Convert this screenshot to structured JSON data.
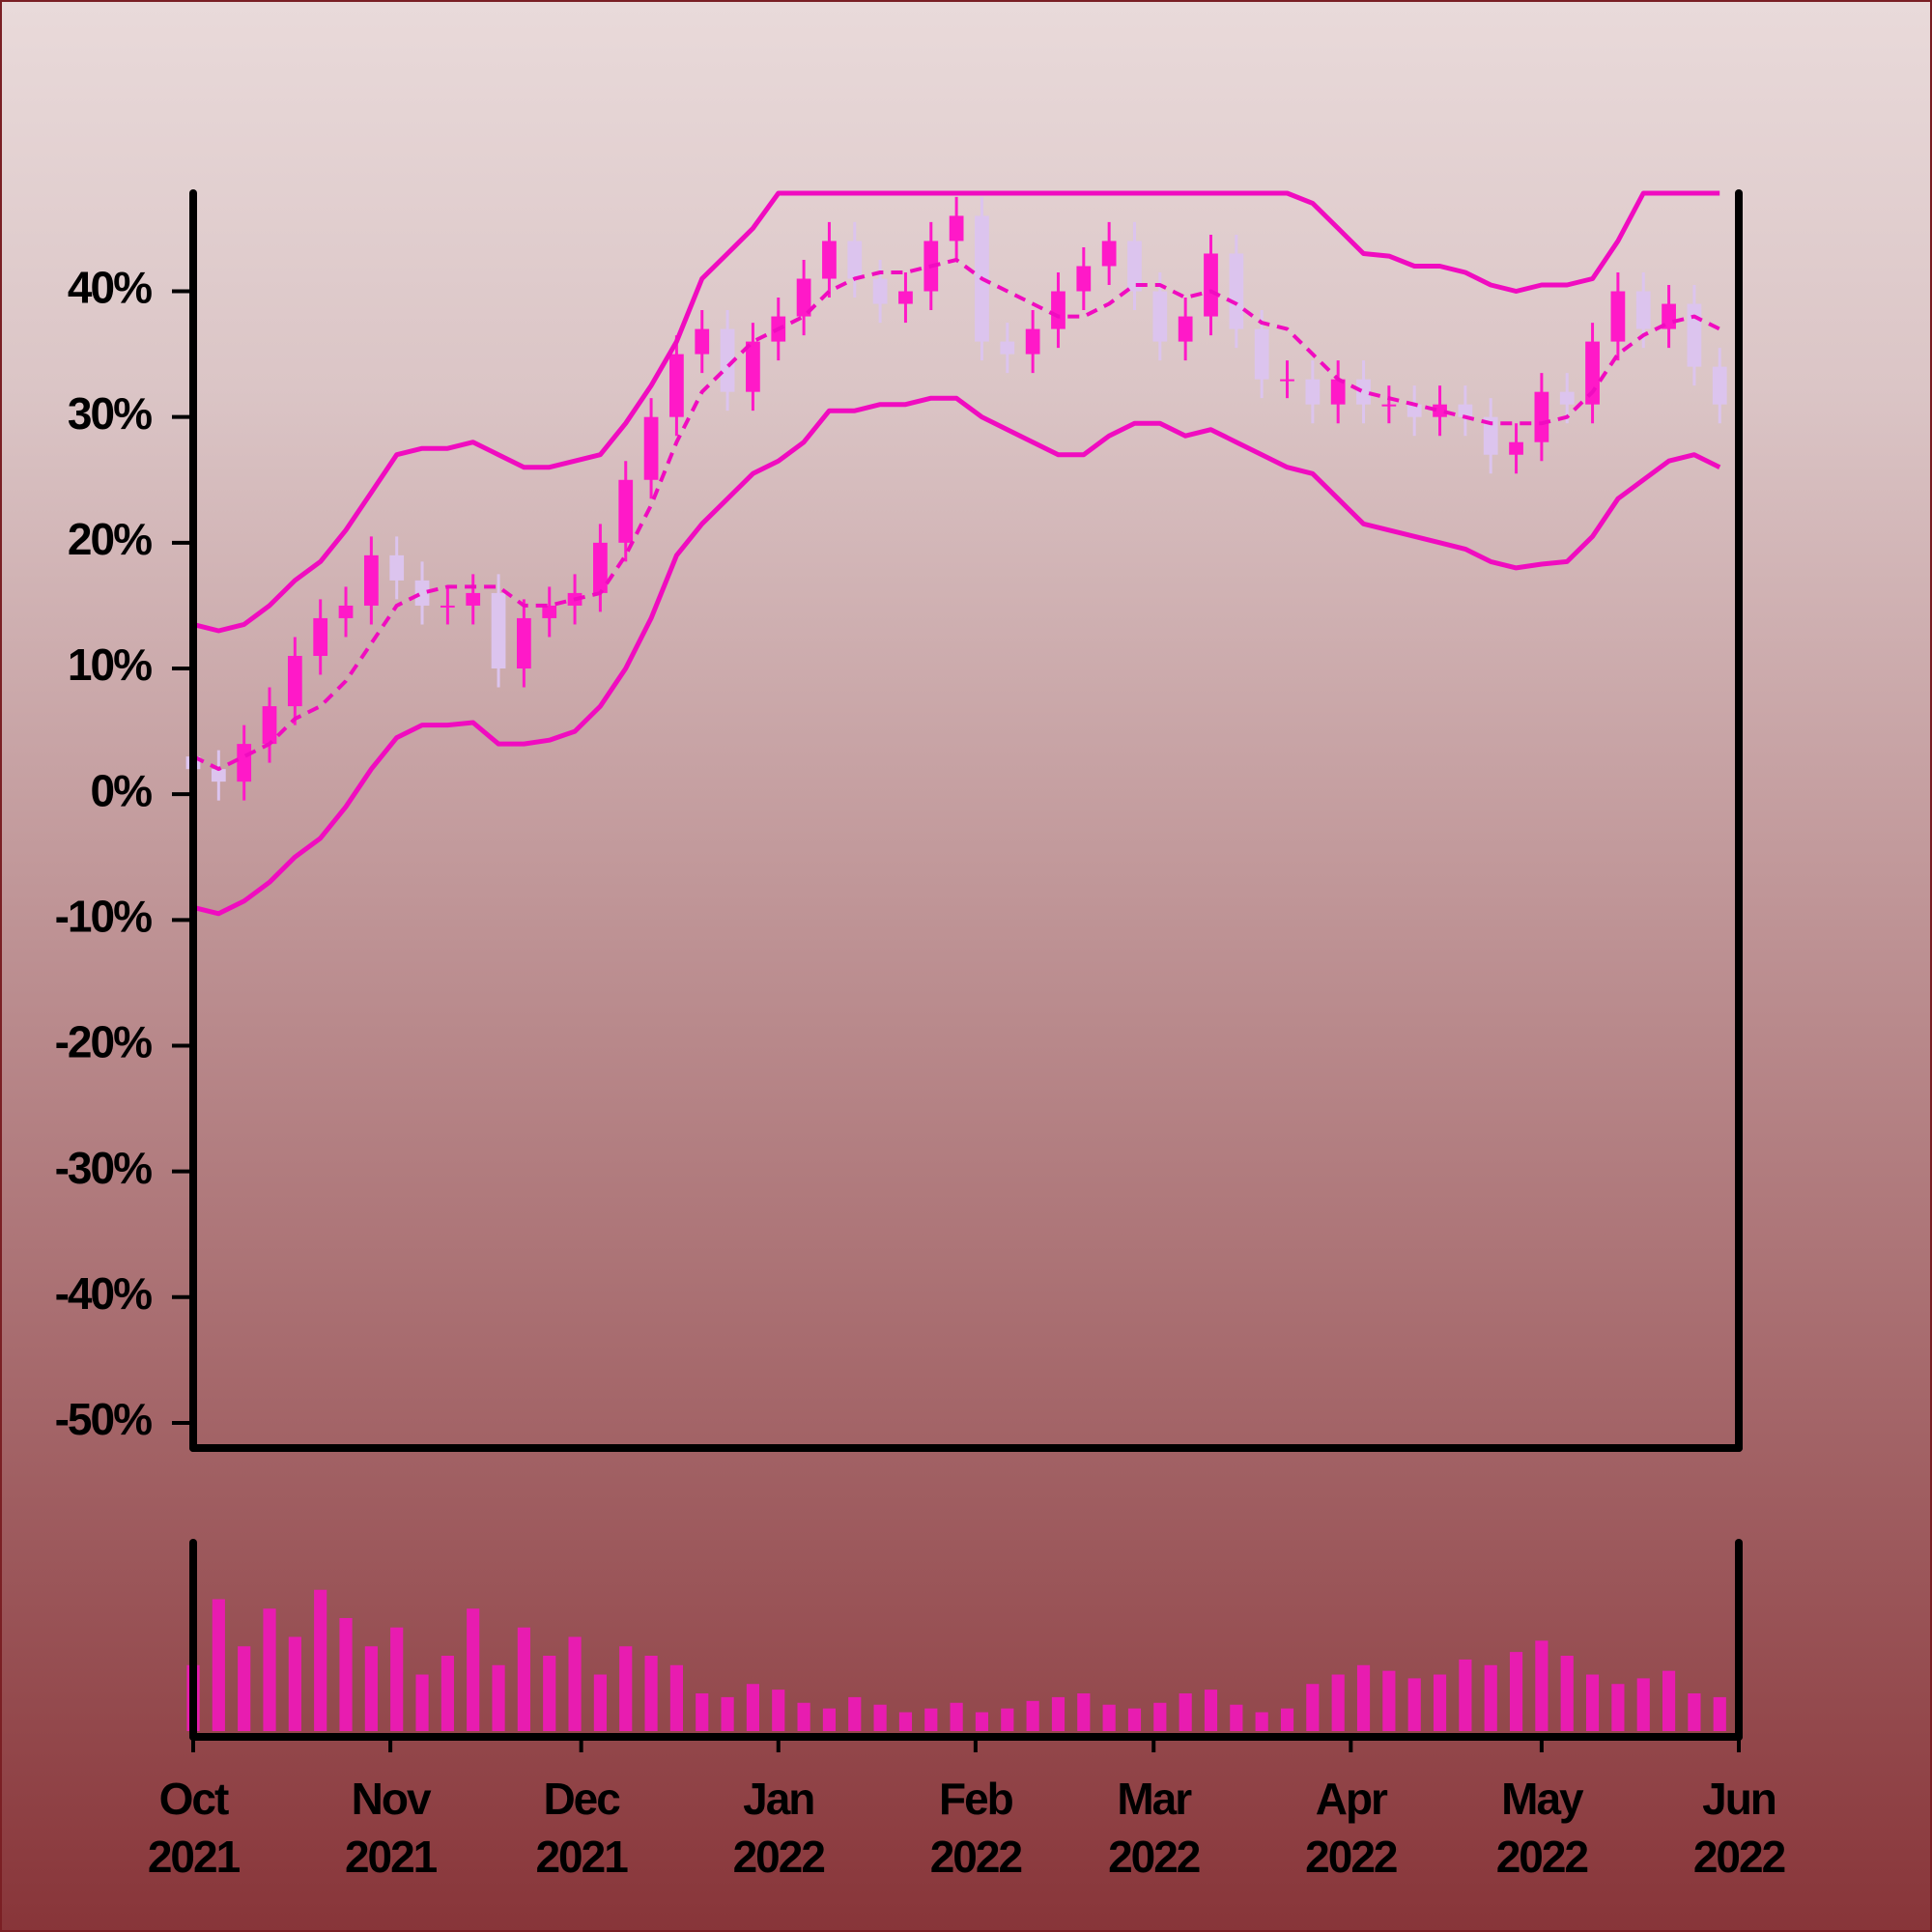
{
  "chart_data": {
    "type": "candlestick",
    "xlim": [
      0,
      243
    ],
    "xticks": [
      {
        "value": 0,
        "label": "Oct 2021"
      },
      {
        "value": 31,
        "label": "Nov 2021"
      },
      {
        "value": 61,
        "label": "Dec 2021"
      },
      {
        "value": 92,
        "label": "Jan 2022"
      },
      {
        "value": 123,
        "label": "Feb 2022"
      },
      {
        "value": 151,
        "label": "Mar 2022"
      },
      {
        "value": 182,
        "label": "Apr 2022"
      },
      {
        "value": 212,
        "label": "May 2022"
      },
      {
        "value": 243,
        "label": "Jun 2022"
      }
    ],
    "ylim": [
      -52,
      47.8
    ],
    "yticks": [
      {
        "value": -50,
        "label": "-50%"
      },
      {
        "value": -40,
        "label": "-40%"
      },
      {
        "value": -30,
        "label": "-30%"
      },
      {
        "value": -20,
        "label": "-20%"
      },
      {
        "value": -10,
        "label": "-10%"
      },
      {
        "value": 0,
        "label": "0%"
      },
      {
        "value": 10,
        "label": "10%"
      },
      {
        "value": 20,
        "label": "20%"
      },
      {
        "value": 30,
        "label": "30%"
      },
      {
        "value": 40,
        "label": "40%"
      }
    ],
    "x": [
      0,
      4,
      8,
      12,
      16,
      20,
      24,
      28,
      32,
      36,
      40,
      44,
      48,
      52,
      56,
      60,
      64,
      68,
      72,
      76,
      80,
      84,
      88,
      92,
      96,
      100,
      104,
      108,
      112,
      116,
      120,
      124,
      128,
      132,
      136,
      140,
      144,
      148,
      152,
      156,
      160,
      164,
      168,
      172,
      176,
      180,
      184,
      188,
      192,
      196,
      200,
      204,
      208,
      212,
      216,
      220,
      224,
      228,
      232,
      236,
      240
    ],
    "open": [
      3,
      2,
      1,
      4,
      7,
      11,
      14,
      15,
      19,
      17,
      15,
      15,
      16,
      10,
      14,
      15,
      16,
      20,
      25,
      30,
      35,
      37,
      32,
      36,
      38,
      41,
      44,
      41,
      39,
      40,
      44,
      46,
      36,
      35,
      37,
      40,
      42,
      44,
      40,
      36,
      38,
      43,
      37,
      33,
      33,
      31,
      33,
      31,
      31,
      30,
      31,
      30,
      27,
      28,
      32,
      31,
      36,
      40,
      37,
      39,
      34
    ],
    "high": [
      4.5,
      3.5,
      5.5,
      8.5,
      12.5,
      15.5,
      16.5,
      20.5,
      20.5,
      18.5,
      16.5,
      17.5,
      17.5,
      15.5,
      16.5,
      17.5,
      21.5,
      26.5,
      31.5,
      36.5,
      38.5,
      38.5,
      37.5,
      39.5,
      42.5,
      45.5,
      45.5,
      42.5,
      41.5,
      45.5,
      47.5,
      47.5,
      37.5,
      38.5,
      41.5,
      43.5,
      45.5,
      45.5,
      41.5,
      39.5,
      44.5,
      44.5,
      38.5,
      34.5,
      34.5,
      34.5,
      34.5,
      32.5,
      32.5,
      32.5,
      32.5,
      31.5,
      29.5,
      33.5,
      33.5,
      37.5,
      41.5,
      41.5,
      40.5,
      40.5,
      35.5
    ],
    "low": [
      0.5,
      -0.5,
      -0.5,
      2.5,
      5.5,
      9.5,
      12.5,
      13.5,
      15.5,
      13.5,
      13.5,
      13.5,
      8.5,
      8.5,
      12.5,
      13.5,
      14.5,
      18.5,
      23.5,
      28.5,
      33.5,
      30.5,
      30.5,
      34.5,
      36.5,
      39.5,
      39.5,
      37.5,
      37.5,
      38.5,
      42.5,
      34.5,
      33.5,
      33.5,
      35.5,
      38.5,
      40.5,
      38.5,
      34.5,
      34.5,
      36.5,
      35.5,
      31.5,
      31.5,
      29.5,
      29.5,
      29.5,
      29.5,
      28.5,
      28.5,
      28.5,
      25.5,
      25.5,
      26.5,
      29.5,
      29.5,
      34.5,
      35.5,
      35.5,
      32.5,
      29.5
    ],
    "close": [
      2,
      1,
      4,
      7,
      11,
      14,
      15,
      19,
      17,
      15,
      15,
      16,
      10,
      14,
      15,
      16,
      20,
      25,
      30,
      35,
      37,
      32,
      36,
      38,
      41,
      44,
      41,
      39,
      40,
      44,
      46,
      36,
      35,
      37,
      40,
      42,
      44,
      40,
      36,
      38,
      43,
      37,
      33,
      33,
      31,
      33,
      31,
      31,
      30,
      31,
      30,
      27,
      28,
      32,
      31,
      36,
      40,
      37,
      39,
      34,
      31
    ],
    "up_color": "#ff19c8",
    "down_color": "#dcc4ee",
    "bands": {
      "color": "#f00cc0",
      "upper": [
        13.5,
        13,
        13.5,
        15,
        17,
        18.5,
        21,
        24,
        27,
        27.5,
        27.5,
        28,
        27,
        26,
        26,
        26.5,
        27,
        29.5,
        32.5,
        36,
        41,
        43,
        45,
        47.8,
        47.8,
        47.8,
        47.8,
        47.8,
        47.8,
        47.8,
        47.8,
        47.8,
        47.8,
        47.8,
        47.8,
        47.8,
        47.8,
        47.8,
        47.8,
        47.8,
        47.8,
        47.8,
        47.8,
        47.8,
        47,
        45,
        43,
        42.8,
        42,
        42,
        41.5,
        40.5,
        40,
        40.5,
        40.5,
        41,
        44,
        47.8,
        47.8,
        47.8,
        47.8
      ],
      "middle": [
        3,
        2,
        3,
        4,
        6,
        7,
        9,
        12,
        15,
        16,
        16.5,
        16.5,
        16.5,
        15,
        15,
        15.5,
        16,
        19,
        23,
        28,
        32,
        34,
        36,
        37,
        38,
        40,
        41,
        41.5,
        41.5,
        42,
        42.5,
        41,
        40,
        39,
        38,
        38,
        39,
        40.5,
        40.5,
        39.5,
        40,
        39,
        37.5,
        37,
        35,
        33,
        32,
        31.5,
        31,
        30.5,
        30,
        29.5,
        29.5,
        29.5,
        30,
        32,
        35,
        36.5,
        37.5,
        38,
        37
      ],
      "lower": [
        -9,
        -9.5,
        -8.5,
        -7,
        -5,
        -3.5,
        -1,
        2,
        4.5,
        5.5,
        5.5,
        5.7,
        4,
        4,
        4.3,
        5,
        7,
        10,
        14,
        19,
        21.5,
        23.5,
        25.5,
        26.5,
        28,
        30.5,
        30.5,
        31,
        31,
        31.5,
        31.5,
        30,
        29,
        28,
        27,
        27,
        28.5,
        29.5,
        29.5,
        28.5,
        29,
        28,
        27,
        26,
        25.5,
        23.5,
        21.5,
        21,
        20.5,
        20,
        19.5,
        18.5,
        18,
        18.3,
        18.5,
        20.5,
        23.5,
        25,
        26.5,
        27,
        26
      ]
    },
    "volume": {
      "color": "#e81cb0",
      "ylim": [
        0,
        100
      ],
      "values": [
        35,
        70,
        45,
        65,
        50,
        75,
        60,
        45,
        55,
        30,
        40,
        65,
        35,
        55,
        40,
        50,
        30,
        45,
        40,
        35,
        20,
        18,
        25,
        22,
        15,
        12,
        18,
        14,
        10,
        12,
        15,
        10,
        12,
        16,
        18,
        20,
        14,
        12,
        15,
        20,
        22,
        14,
        10,
        12,
        25,
        30,
        35,
        32,
        28,
        30,
        38,
        35,
        42,
        48,
        40,
        30,
        25,
        28,
        32,
        20,
        18
      ]
    }
  }
}
